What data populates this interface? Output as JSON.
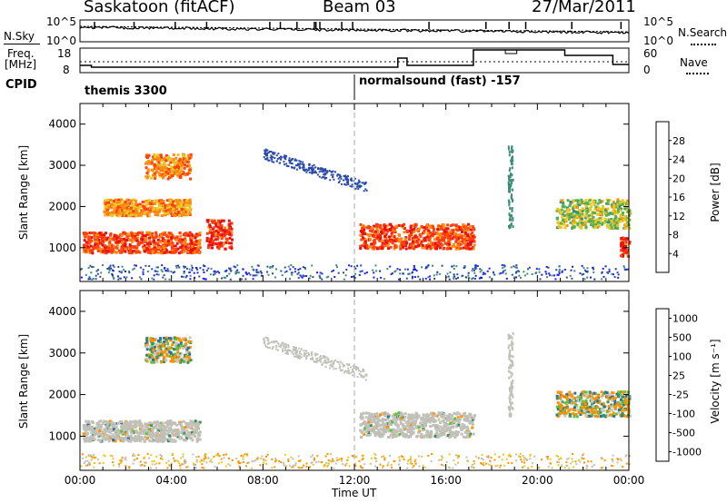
{
  "header": {
    "station": "Saskatoon (fitACF)",
    "beam": "Beam 03",
    "date": "27/Mar/2011"
  },
  "noise_panel": {
    "left_label": "N.Sky",
    "right_label": "N.Search",
    "left_ticks": [
      "10^5",
      "10^0"
    ],
    "right_ticks": [
      "10^5",
      "10^0"
    ]
  },
  "freq_panel": {
    "left_label_line1": "Freq.",
    "left_label_line2": "[MHz]",
    "right_label": "Nave",
    "left_ticks": [
      "18",
      "8"
    ],
    "right_ticks": [
      "60",
      "0"
    ]
  },
  "cpid_panel": {
    "label": "CPID",
    "mode_1": "themis 3300",
    "mode_2": "normalsound (fast) -157"
  },
  "chart_data": [
    {
      "type": "heatmap",
      "title": "",
      "xlabel": "Time UT",
      "ylabel": "Slant Range [km]",
      "x_range": [
        "00:00",
        "24:00"
      ],
      "ylim": [
        180,
        4500
      ],
      "y_ticks": [
        1000,
        2000,
        3000,
        4000
      ],
      "colorbar": {
        "label": "Power [dB]",
        "ticks": [
          "4",
          "8",
          "12",
          "16",
          "20",
          "24",
          "28"
        ],
        "colors": [
          "#1a1aff",
          "#2a4aa8",
          "#3c8c78",
          "#55b050",
          "#e8c820",
          "#ff8c10",
          "#ff4010",
          "#e81010"
        ]
      },
      "features": [
        {
          "start_hr": 0.1,
          "end_hr": 5.2,
          "range_km": [
            900,
            1400
          ],
          "power_db": 26
        },
        {
          "start_hr": 1.0,
          "end_hr": 4.8,
          "range_km": [
            1800,
            2200
          ],
          "power_db": 22
        },
        {
          "start_hr": 2.8,
          "end_hr": 4.8,
          "range_km": [
            2700,
            3300
          ],
          "power_db": 22
        },
        {
          "start_hr": 5.5,
          "end_hr": 6.6,
          "range_km": [
            1000,
            1700
          ],
          "power_db": 28
        },
        {
          "start_hr": 12.2,
          "end_hr": 17.2,
          "range_km": [
            1000,
            1600
          ],
          "power_db": 26
        },
        {
          "start_hr": 20.8,
          "end_hr": 24.0,
          "range_km": [
            1500,
            2200
          ],
          "power_db": 16
        },
        {
          "start_hr": 23.6,
          "end_hr": 24.0,
          "range_km": [
            800,
            1300
          ],
          "power_db": 28
        }
      ]
    },
    {
      "type": "heatmap",
      "title": "",
      "xlabel": "Time UT",
      "ylabel": "Slant Range [km]",
      "x_range": [
        "00:00",
        "24:00"
      ],
      "ylim": [
        180,
        4500
      ],
      "y_ticks": [
        1000,
        2000,
        3000,
        4000
      ],
      "x_ticks": [
        "00:00",
        "04:00",
        "08:00",
        "12:00",
        "16:00",
        "20:00",
        "00:00"
      ],
      "colorbar": {
        "label": "Velocity [m s⁻¹]",
        "ticks": [
          "1000",
          "500",
          "100",
          "25",
          "-25",
          "-100",
          "-500",
          "-1000"
        ],
        "colors": [
          "#1a3cc8",
          "#2a70a0",
          "#3c9060",
          "#60c040",
          "#c8c8c0",
          "#ff9000",
          "#ff5010",
          "#e81010"
        ]
      },
      "features": [
        {
          "start_hr": 0.1,
          "end_hr": 5.2,
          "range_km": [
            900,
            1400
          ],
          "velocity": 0,
          "ground_scatter": true
        },
        {
          "start_hr": 2.8,
          "end_hr": 4.8,
          "range_km": [
            2800,
            3400
          ],
          "velocity": -200
        },
        {
          "start_hr": 12.2,
          "end_hr": 17.2,
          "range_km": [
            1000,
            1600
          ],
          "velocity": 0,
          "ground_scatter": true
        },
        {
          "start_hr": 20.8,
          "end_hr": 24.0,
          "range_km": [
            1500,
            2100
          ],
          "velocity": -100
        }
      ]
    }
  ]
}
